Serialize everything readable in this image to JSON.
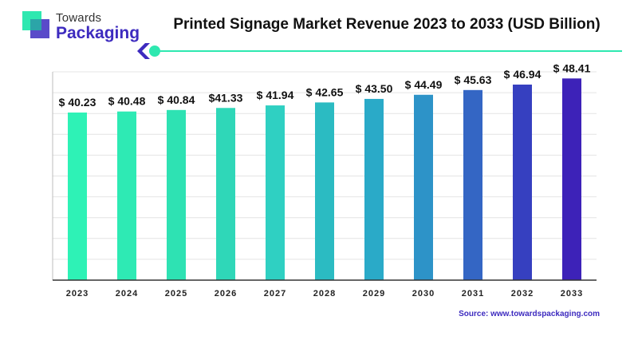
{
  "brand": {
    "name_top": "Towards",
    "name_bottom": "Packaging",
    "logo_colors": [
      "#2ee8b0",
      "#3d2bbf"
    ]
  },
  "source_text": "Source: www.towardspackaging.com",
  "chart_data": {
    "type": "bar",
    "title": "Printed Signage Market Revenue 2023 to 2033 (USD Billion)",
    "categories": [
      "2023",
      "2024",
      "2025",
      "2026",
      "2027",
      "2028",
      "2029",
      "2030",
      "2031",
      "2032",
      "2033"
    ],
    "values": [
      40.23,
      40.48,
      40.84,
      41.33,
      41.94,
      42.65,
      43.5,
      44.49,
      45.63,
      46.94,
      48.41
    ],
    "value_labels": [
      "$ 40.23",
      "$ 40.48",
      "$ 40.84",
      "$41.33",
      "$ 41.94",
      "$ 42.65",
      "$ 43.50",
      "$ 44.49",
      "$ 45.63",
      "$ 46.94",
      "$ 48.41"
    ],
    "ylim": [
      0,
      50
    ],
    "grid": true,
    "bar_colors": [
      "#2ef2b6",
      "#2eeab4",
      "#2ee2b3",
      "#2fd7b8",
      "#2fd0c2",
      "#2bbbc2",
      "#2aaac8",
      "#2d93c8",
      "#3466c4",
      "#3640c0",
      "#3d22b8"
    ]
  }
}
